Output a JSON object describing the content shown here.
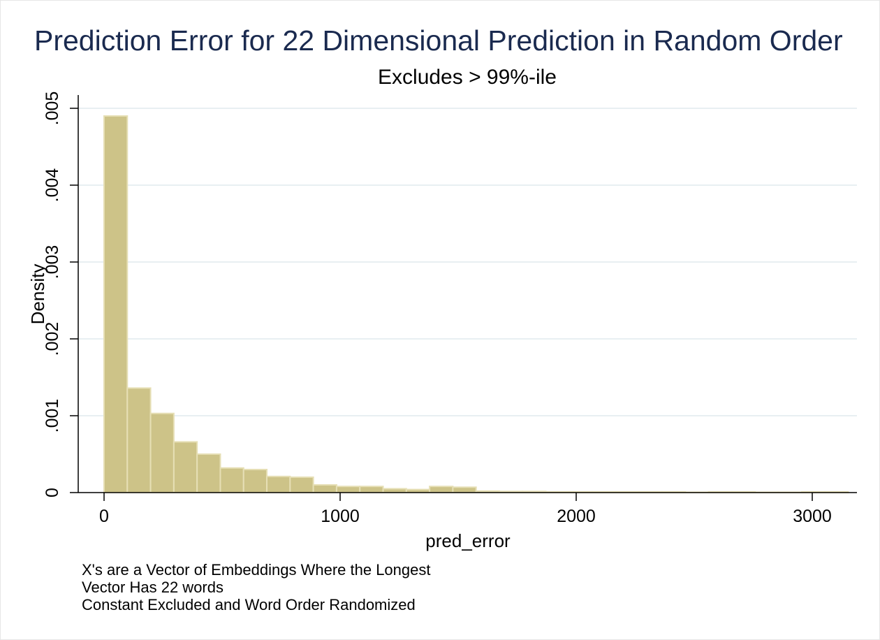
{
  "chart_data": {
    "type": "bar",
    "title": "Prediction Error for 22 Dimensional Prediction in Random Order",
    "subtitle": "Excludes > 99%-ile",
    "xlabel": "pred_error",
    "ylabel": "Density",
    "xlim": [
      -100,
      3170
    ],
    "ylim": [
      0,
      0.0051
    ],
    "xticks": [
      0,
      1000,
      2000,
      3000
    ],
    "xtick_labels": [
      "0",
      "1000",
      "2000",
      "3000"
    ],
    "yticks": [
      0,
      0.001,
      0.002,
      0.003,
      0.004,
      0.005
    ],
    "ytick_labels": [
      "0",
      ".001",
      ".002",
      ".003",
      ".004",
      ".005"
    ],
    "grid": true,
    "bin_start": 0,
    "bin_width": 98.5,
    "values": [
      0.0049,
      0.00136,
      0.00103,
      0.00066,
      0.0005,
      0.00032,
      0.0003,
      0.00021,
      0.0002,
      0.0001,
      8e-05,
      8e-05,
      5e-05,
      4e-05,
      8e-05,
      7e-05,
      2e-05,
      1.5e-05,
      1.5e-05,
      1e-05,
      1e-05,
      1e-05,
      1e-05,
      1e-05,
      1e-05,
      5e-06,
      1e-05,
      1e-05,
      5e-06,
      5e-06,
      1e-05,
      1e-05
    ],
    "bar_color": "#cdc388",
    "bar_edge_color": "#e6dfb5",
    "notes": [
      "X's are a Vector of Embeddings Where the Longest",
      "Vector Has 22 words",
      "Constant Excluded and Word Order Randomized"
    ]
  }
}
